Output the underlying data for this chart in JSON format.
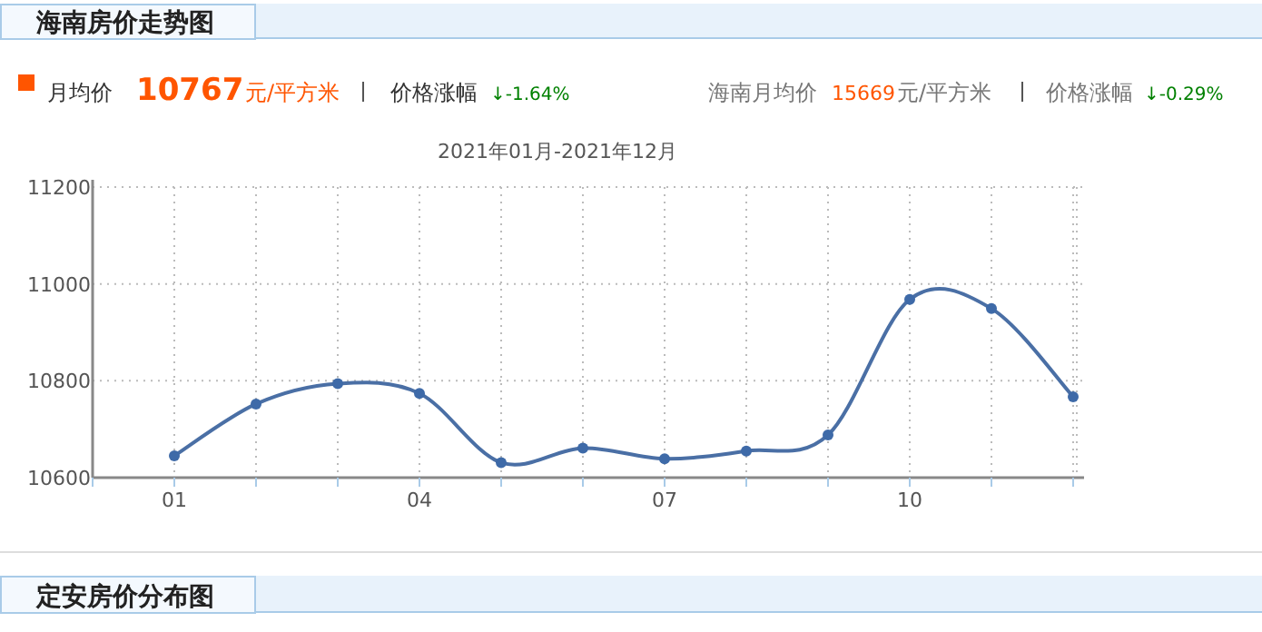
{
  "chart_data": {
    "type": "line",
    "title": "海南房价走势图",
    "subtitle": "2021年01月-2021年12月",
    "categories": [
      "01",
      null,
      null,
      "04",
      null,
      null,
      "07",
      null,
      null,
      "10",
      null,
      null
    ],
    "values": [
      10645,
      10752,
      10794,
      10774,
      10631,
      10661,
      10639,
      10655,
      10688,
      10968,
      10949,
      10767
    ],
    "color": "#4a6fa5",
    "ylim": [
      10600,
      11200
    ],
    "yticks": [
      10600,
      10800,
      11000,
      11200
    ],
    "grid": true,
    "marker": "circle",
    "line_style": "solid",
    "annotations": [
      "月均价",
      "10767",
      "元/平方米",
      "价格涨幅",
      "↓-1.64%",
      "海南月均价",
      "15669",
      "元/平方米",
      "价格涨幅",
      "↓-0.29%",
      "定安房价分布图"
    ]
  }
}
